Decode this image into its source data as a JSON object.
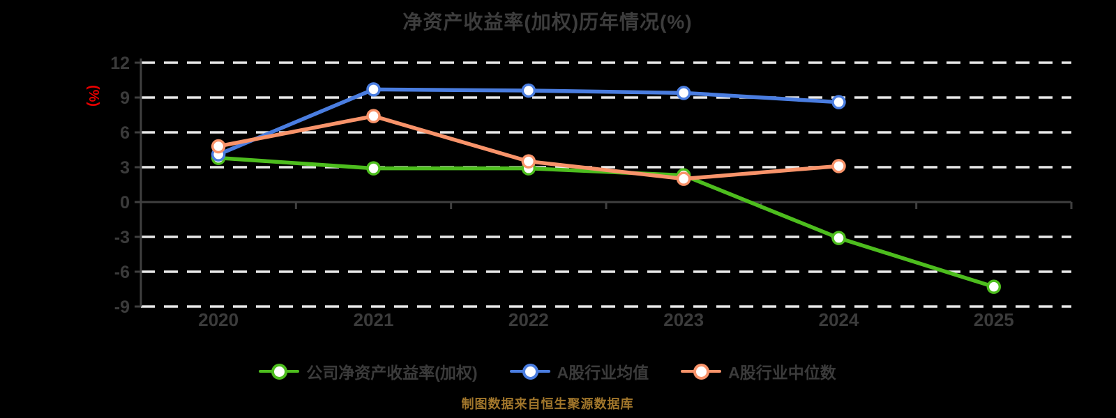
{
  "title": "净资产收益率(加权)历年情况(%)",
  "caption": "制图数据来自恒生聚源数据库",
  "chart_data": {
    "type": "line",
    "categories": [
      "2020",
      "2021",
      "2022",
      "2023",
      "2024",
      "2025"
    ],
    "series": [
      {
        "name": "公司净资产收益率(加权)",
        "color": "#4dbd1e",
        "values": [
          3.8,
          2.9,
          2.9,
          2.3,
          -3.1,
          -7.3
        ]
      },
      {
        "name": "A股行业均值",
        "color": "#4a7de0",
        "values": [
          4.1,
          9.7,
          9.6,
          9.4,
          8.6,
          null
        ]
      },
      {
        "name": "A股行业中位数",
        "color": "#f8936a",
        "values": [
          4.8,
          7.4,
          3.5,
          2.0,
          3.1,
          null
        ]
      }
    ],
    "ylabel": "(%)",
    "ylabel_color": "#e60000",
    "yticks": [
      12,
      9,
      6,
      3,
      0,
      -3,
      -6,
      -9
    ],
    "ylim": [
      -9,
      12
    ],
    "xlabel": "",
    "grid": true,
    "gridline_color": "#e8e8e8",
    "axis_color": "#3f3f3f",
    "tick_label_color": "#3b3b3b",
    "marker_fill": "#ffffff",
    "legend_position": "bottom",
    "background_color": "#000000",
    "title_color": "#3d3d3d",
    "caption_color": "#a1762b"
  }
}
